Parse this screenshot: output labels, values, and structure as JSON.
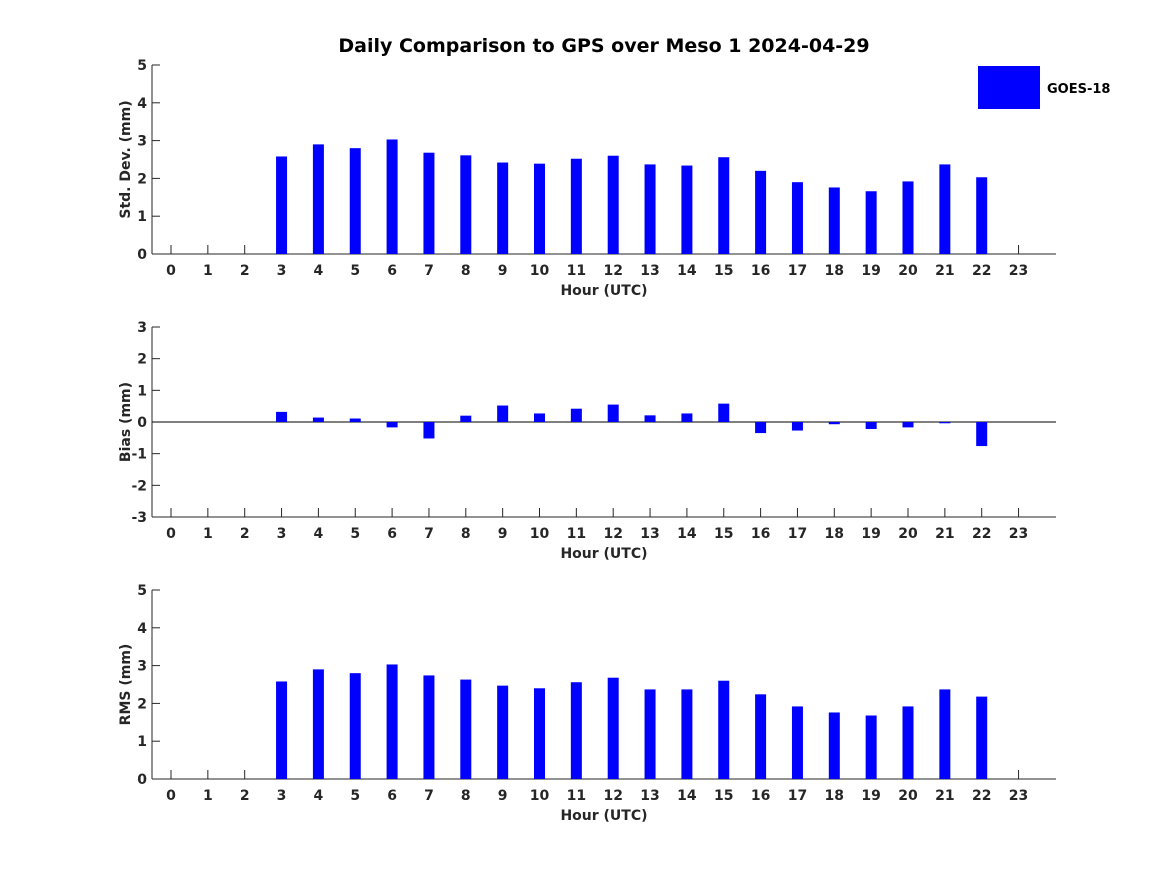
{
  "chart_data": [
    {
      "type": "bar",
      "title": "Daily Comparison to GPS over Meso 1 2024-04-29",
      "xlabel": "Hour (UTC)",
      "ylabel": "Std. Dev. (mm)",
      "ylim": [
        0,
        5
      ],
      "yticks": [
        "0",
        "1",
        "2",
        "3",
        "4",
        "5"
      ],
      "categories": [
        "0",
        "1",
        "2",
        "3",
        "4",
        "5",
        "6",
        "7",
        "8",
        "9",
        "10",
        "11",
        "12",
        "13",
        "14",
        "15",
        "16",
        "17",
        "18",
        "19",
        "20",
        "21",
        "22",
        "23"
      ],
      "series": [
        {
          "name": "GOES-18",
          "values": [
            null,
            null,
            null,
            2.58,
            2.9,
            2.8,
            3.03,
            2.68,
            2.61,
            2.42,
            2.39,
            2.52,
            2.6,
            2.37,
            2.34,
            2.56,
            2.2,
            1.9,
            1.76,
            1.66,
            1.92,
            2.37,
            2.03,
            null
          ]
        }
      ]
    },
    {
      "type": "bar",
      "title": "",
      "xlabel": "Hour (UTC)",
      "ylabel": "Bias (mm)",
      "ylim": [
        -3,
        3
      ],
      "yticks": [
        "-3",
        "-2",
        "-1",
        "0",
        "1",
        "2",
        "3"
      ],
      "categories": [
        "0",
        "1",
        "2",
        "3",
        "4",
        "5",
        "6",
        "7",
        "8",
        "9",
        "10",
        "11",
        "12",
        "13",
        "14",
        "15",
        "16",
        "17",
        "18",
        "19",
        "20",
        "21",
        "22",
        "23"
      ],
      "series": [
        {
          "name": "GOES-18",
          "values": [
            null,
            null,
            null,
            0.32,
            0.14,
            0.11,
            -0.17,
            -0.52,
            0.2,
            0.52,
            0.27,
            0.42,
            0.55,
            0.21,
            0.27,
            0.58,
            -0.35,
            -0.27,
            -0.07,
            -0.22,
            -0.17,
            -0.04,
            -0.76,
            null
          ]
        }
      ]
    },
    {
      "type": "bar",
      "title": "",
      "xlabel": "Hour (UTC)",
      "ylabel": "RMS (mm)",
      "ylim": [
        0,
        5
      ],
      "yticks": [
        "0",
        "1",
        "2",
        "3",
        "4",
        "5"
      ],
      "categories": [
        "0",
        "1",
        "2",
        "3",
        "4",
        "5",
        "6",
        "7",
        "8",
        "9",
        "10",
        "11",
        "12",
        "13",
        "14",
        "15",
        "16",
        "17",
        "18",
        "19",
        "20",
        "21",
        "22",
        "23"
      ],
      "series": [
        {
          "name": "GOES-18",
          "values": [
            null,
            null,
            null,
            2.58,
            2.9,
            2.8,
            3.03,
            2.74,
            2.63,
            2.47,
            2.4,
            2.56,
            2.68,
            2.37,
            2.37,
            2.6,
            2.24,
            1.92,
            1.76,
            1.68,
            1.92,
            2.37,
            2.18,
            null
          ]
        }
      ]
    }
  ],
  "legend": {
    "label": "GOES-18",
    "position": "top-right"
  },
  "colors": {
    "bar": "#0000ff",
    "axis": "#262626",
    "background": "#ffffff"
  }
}
